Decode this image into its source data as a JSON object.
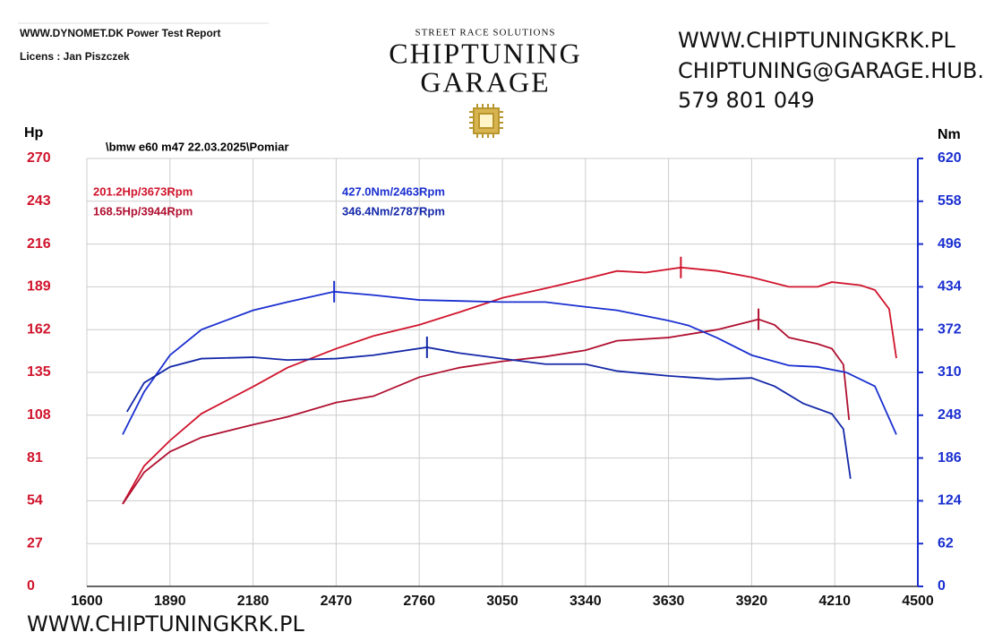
{
  "header": {
    "site": "WWW.DYNOMET.DK  Power Test Report",
    "licence": "Licens :  Jan Piszczek"
  },
  "logo": {
    "tagline": "STREET RACE SOLUTIONS",
    "line1": "CHIPTUNING",
    "line2": "GARAGE"
  },
  "contact": {
    "web": "WWW.CHIPTUNINGKRK.PL",
    "email": "CHIPTUNING@GARAGE.HUB.PL",
    "phone": "579 801 049"
  },
  "footer": {
    "web": "WWW.CHIPTUNINGKRK.PL"
  },
  "chart_data": {
    "type": "line",
    "title": "\\bmw e60 m47 22.03.2025\\Pomiar",
    "y_label": "Hp",
    "y2_label": "Nm",
    "xlim": [
      1600,
      4500
    ],
    "xticks": [
      1600,
      1890,
      2180,
      2470,
      2760,
      3050,
      3340,
      3630,
      3920,
      4210,
      4500
    ],
    "ylim": [
      0,
      270
    ],
    "yticks": [
      0,
      27,
      54,
      81,
      108,
      135,
      162,
      189,
      216,
      243,
      270
    ],
    "y2lim": [
      0,
      620
    ],
    "y2ticks": [
      0,
      62,
      124,
      186,
      248,
      310,
      372,
      434,
      496,
      558,
      620
    ],
    "grid": true,
    "y_color": "#d0142c",
    "y2_color": "#1a2fd0",
    "series": [
      {
        "color": "#d0142c",
        "axis": "y",
        "x": [
          1725,
          1800,
          1890,
          2000,
          2180,
          2300,
          2470,
          2600,
          2760,
          2900,
          3050,
          3200,
          3340,
          3450,
          3550,
          3673,
          3800,
          3920,
          4050,
          4150,
          4200,
          4300,
          4350,
          4400,
          4425
        ],
        "values": [
          52,
          76,
          92,
          109,
          126,
          138,
          150,
          158,
          165,
          173,
          182,
          188,
          194,
          199,
          198,
          201.2,
          199,
          195,
          189,
          189,
          192,
          190,
          187,
          175,
          144
        ],
        "marker": {
          "x": 3673,
          "value": 201.2,
          "label": "201.2Hp/3673Rpm"
        }
      },
      {
        "color": "#b01030",
        "axis": "y",
        "x": [
          1725,
          1800,
          1890,
          2000,
          2180,
          2300,
          2470,
          2600,
          2760,
          2900,
          3050,
          3200,
          3340,
          3450,
          3630,
          3800,
          3944,
          4000,
          4050,
          4150,
          4200,
          4240,
          4260
        ],
        "values": [
          52,
          72,
          85,
          94,
          102,
          107,
          116,
          120,
          132,
          138,
          142,
          145,
          149,
          155,
          157,
          162,
          168.5,
          165,
          157,
          153,
          150,
          140,
          105
        ],
        "marker": {
          "x": 3944,
          "value": 168.5,
          "label": "168.5Hp/3944Rpm"
        }
      },
      {
        "color": "#1a2fd0",
        "axis": "y2",
        "x": [
          1725,
          1800,
          1890,
          2000,
          2180,
          2300,
          2463,
          2600,
          2760,
          3050,
          3200,
          3340,
          3450,
          3630,
          3700,
          3800,
          3920,
          4050,
          4150,
          4250,
          4350,
          4425
        ],
        "values": [
          220,
          282,
          335,
          372,
          400,
          412,
          427,
          422,
          415,
          412,
          412,
          405,
          400,
          385,
          378,
          360,
          335,
          320,
          318,
          310,
          290,
          220
        ],
        "marker": {
          "x": 2463,
          "value": 427,
          "label": "427.0Nm/2463Rpm"
        }
      },
      {
        "color": "#1428a8",
        "axis": "y2",
        "x": [
          1740,
          1800,
          1890,
          2000,
          2180,
          2300,
          2470,
          2600,
          2787,
          2900,
          3050,
          3200,
          3340,
          3450,
          3630,
          3800,
          3920,
          4000,
          4100,
          4200,
          4240,
          4265
        ],
        "values": [
          253,
          295,
          318,
          330,
          332,
          328,
          330,
          335,
          346.4,
          338,
          330,
          322,
          322,
          312,
          305,
          300,
          302,
          290,
          265,
          250,
          228,
          156
        ],
        "marker": {
          "x": 2787,
          "value": 346.4,
          "label": "346.4Nm/2787Rpm"
        }
      }
    ]
  }
}
